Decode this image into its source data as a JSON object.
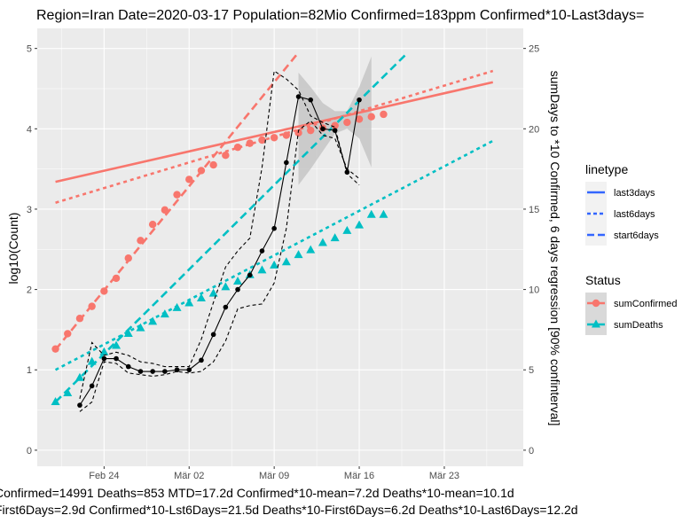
{
  "chart_data": {
    "type": "line",
    "title": "Region=Iran Date=2020-03-17  Population=82Mio Confirmed=183ppm  Confirmed*10-Last3days=",
    "ylabel": "log10(Count)",
    "y2label": "sumDays to *10 Confirmed, 6 days regression [90% confinterval]",
    "ylim": [
      -0.2,
      5.25
    ],
    "y2lim": [
      -1,
      26.25
    ],
    "y_ticks": [
      "0",
      "1",
      "2",
      "3",
      "4",
      "5"
    ],
    "y2_ticks": [
      "0",
      "5",
      "10",
      "15",
      "20",
      "25"
    ],
    "x_ticks": [
      {
        "label": "Feb 24",
        "day": 4
      },
      {
        "label": "Mär 02",
        "day": 11
      },
      {
        "label": "Mär 09",
        "day": 18
      },
      {
        "label": "Mär 16",
        "day": 25
      },
      {
        "label": "Mär 23",
        "day": 32
      }
    ],
    "x_range": [
      -1.5,
      38.5
    ],
    "grid": true,
    "background": "#ebebeb",
    "colors": {
      "sumConfirmed": "#f8766d",
      "sumDeaths": "#00bfc4",
      "legend_line": "#3366ff",
      "ci_band": "#bebebe"
    },
    "series": [
      {
        "name": "sumConfirmed",
        "axis": "left",
        "marker": "circle",
        "color": "#f8766d",
        "x": [
          0,
          1,
          2,
          3,
          4,
          5,
          6,
          7,
          8,
          9,
          10,
          11,
          12,
          13,
          14,
          15,
          16,
          17,
          18,
          19,
          20,
          21,
          22,
          23,
          24,
          25,
          26,
          27
        ],
        "y": [
          1.26,
          1.45,
          1.64,
          1.79,
          1.98,
          2.14,
          2.39,
          2.61,
          2.81,
          2.99,
          3.18,
          3.37,
          3.48,
          3.55,
          3.67,
          3.77,
          3.82,
          3.86,
          3.89,
          3.92,
          3.95,
          3.98,
          4.01,
          4.04,
          4.08,
          4.12,
          4.15,
          4.18
        ]
      },
      {
        "name": "sumDeaths",
        "axis": "left",
        "marker": "triangle",
        "color": "#00bfc4",
        "x": [
          0,
          1,
          2,
          3,
          4,
          5,
          6,
          7,
          8,
          9,
          10,
          11,
          12,
          13,
          14,
          15,
          16,
          17,
          18,
          19,
          20,
          21,
          22,
          23,
          24,
          25,
          26,
          27
        ],
        "y": [
          0.6,
          0.71,
          0.9,
          1.1,
          1.22,
          1.3,
          1.45,
          1.52,
          1.6,
          1.69,
          1.77,
          1.83,
          1.89,
          1.95,
          2.03,
          2.1,
          2.18,
          2.24,
          2.3,
          2.34,
          2.43,
          2.49,
          2.58,
          2.64,
          2.73,
          2.8,
          2.93,
          2.93
        ]
      },
      {
        "name": "Confirmed*10 days (mean)",
        "axis": "right",
        "marker": "point",
        "color": "#000000",
        "x": [
          2,
          3,
          4,
          5,
          6,
          7,
          8,
          9,
          10,
          11,
          12,
          13,
          14,
          15,
          16,
          17,
          18,
          19,
          20,
          21,
          22,
          23,
          24,
          25,
          26
        ],
        "y": [
          2.8,
          4.0,
          5.7,
          5.7,
          5.2,
          4.9,
          4.9,
          4.9,
          5.0,
          5.0,
          5.6,
          7.2,
          8.9,
          10.0,
          10.9,
          12.4,
          13.8,
          17.9,
          22.0,
          21.8,
          20.0,
          19.9,
          17.3,
          21.8,
          null
        ]
      },
      {
        "name": "Confirmed*10 days (upper)",
        "axis": "right",
        "marker": "none",
        "color": "#000000",
        "x": [
          2,
          3,
          4,
          5,
          6,
          7,
          8,
          9,
          10,
          11,
          12,
          13,
          14,
          15,
          16,
          17,
          18,
          19,
          20,
          21,
          22,
          23,
          24,
          25,
          26
        ],
        "y": [
          3.2,
          6.7,
          5.9,
          6.1,
          5.9,
          5.5,
          5.4,
          5.2,
          5.2,
          5.2,
          6.9,
          9.2,
          11.4,
          12.4,
          13.2,
          17.6,
          23.6,
          23.1,
          22.4,
          20.8,
          20.4,
          20.1,
          17.2,
          16.5,
          null
        ]
      },
      {
        "name": "Confirmed*10 days (lower)",
        "axis": "right",
        "marker": "none",
        "color": "#000000",
        "x": [
          2,
          3,
          4,
          5,
          6,
          7,
          8,
          9,
          10,
          11,
          12,
          13,
          14,
          15,
          16,
          17,
          18,
          19,
          20,
          21,
          22,
          23,
          24,
          25,
          26
        ],
        "y": [
          2.4,
          3.0,
          5.5,
          5.4,
          4.8,
          4.7,
          4.6,
          4.7,
          4.9,
          4.8,
          4.9,
          5.5,
          6.8,
          8.8,
          9.0,
          9.1,
          10.4,
          13.8,
          19.9,
          20.5,
          19.6,
          19.4,
          17.5,
          16.9,
          null
        ]
      }
    ],
    "ci_band": {
      "x": [
        20,
        21,
        22,
        23,
        24,
        25,
        26
      ],
      "lower_right": [
        16.5,
        17.5,
        18.6,
        19.7,
        20.0,
        19.4,
        17.6
      ],
      "upper_right": [
        23.5,
        22.6,
        21.6,
        21.1,
        21.1,
        22.6,
        24.5
      ]
    },
    "fit_lines": [
      {
        "series": "sumConfirmed",
        "linetype": "last3days",
        "x": [
          0,
          36
        ],
        "y": [
          3.34,
          4.58
        ]
      },
      {
        "series": "sumConfirmed",
        "linetype": "last6days",
        "x": [
          0,
          36
        ],
        "y": [
          3.08,
          4.72
        ]
      },
      {
        "series": "sumConfirmed",
        "linetype": "start6days",
        "x": [
          0,
          20
        ],
        "y": [
          1.25,
          4.95
        ]
      },
      {
        "series": "sumDeaths",
        "linetype": "last6days",
        "x": [
          0,
          36
        ],
        "y": [
          1.0,
          3.85
        ]
      },
      {
        "series": "sumDeaths",
        "linetype": "start6days",
        "x": [
          0,
          29
        ],
        "y": [
          0.6,
          4.95
        ]
      }
    ],
    "legend": {
      "placement": "right",
      "linetype_title": "linetype",
      "linetype_items": [
        "last3days",
        "last6days",
        "start6days"
      ],
      "status_title": "Status",
      "status_items": [
        "sumConfirmed",
        "sumDeaths"
      ]
    },
    "caption_lines": [
      "Confirmed=14991 Deaths=853  MTD=17.2d   Confirmed*10-mean=7.2d  Deaths*10-mean=10.1d",
      "First6Days=2.9d  Confirmed*10-Lst6Days=21.5d    Deaths*10-First6Days=6.2d  Deaths*10-Last6Days=12.2d"
    ]
  }
}
